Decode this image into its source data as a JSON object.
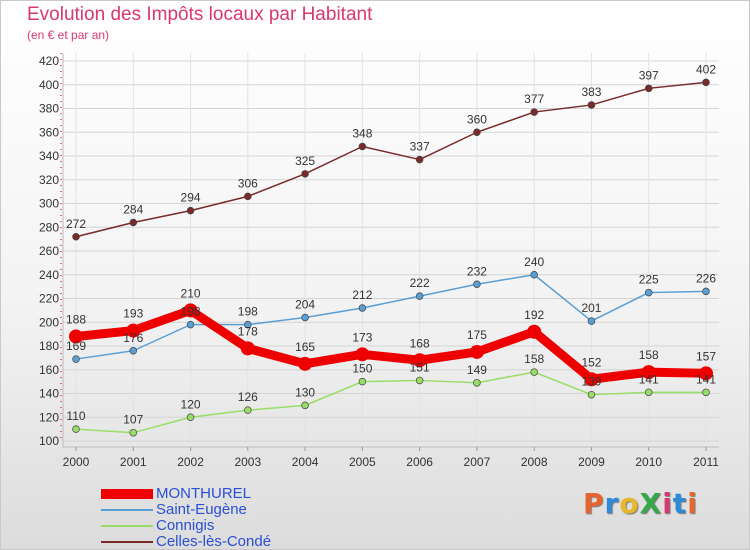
{
  "header": {
    "title": "Evolution des Impôts locaux par Habitant",
    "subtitle": "(en € et par an)"
  },
  "logo": {
    "text": "ProXiti",
    "colors": [
      "#e8642c",
      "#2d8ad6",
      "#e8b82c",
      "#36a84a",
      "#d9386e",
      "#2d8ad6",
      "#e8642c"
    ]
  },
  "chart_data": {
    "type": "line",
    "title": "Evolution des Impôts locaux par Habitant",
    "subtitle": "(en € et par an)",
    "xlabel": "",
    "ylabel": "",
    "x": [
      "2000",
      "2001",
      "2002",
      "2003",
      "2004",
      "2005",
      "2006",
      "2007",
      "2008",
      "2009",
      "2010",
      "2011"
    ],
    "ylim": [
      100,
      420
    ],
    "yticks": [
      100,
      120,
      140,
      160,
      180,
      200,
      220,
      240,
      260,
      280,
      300,
      320,
      340,
      360,
      380,
      400,
      420
    ],
    "grid": true,
    "legend_position": "bottom-left",
    "series": [
      {
        "name": "MONTHUREL",
        "color": "#ee0000",
        "values": [
          188,
          193,
          210,
          178,
          165,
          173,
          168,
          175,
          192,
          152,
          158,
          157
        ]
      },
      {
        "name": "Saint-Eugène",
        "color": "#5a9fd4",
        "values": [
          169,
          176,
          198,
          198,
          204,
          212,
          222,
          232,
          240,
          201,
          225,
          226
        ]
      },
      {
        "name": "Connigis",
        "color": "#99dd66",
        "values": [
          110,
          107,
          120,
          126,
          130,
          150,
          151,
          149,
          158,
          139,
          141,
          141
        ]
      },
      {
        "name": "Celles-lès-Condé",
        "color": "#7a2a2a",
        "values": [
          272,
          284,
          294,
          306,
          325,
          348,
          337,
          360,
          377,
          383,
          397,
          402
        ]
      }
    ]
  }
}
